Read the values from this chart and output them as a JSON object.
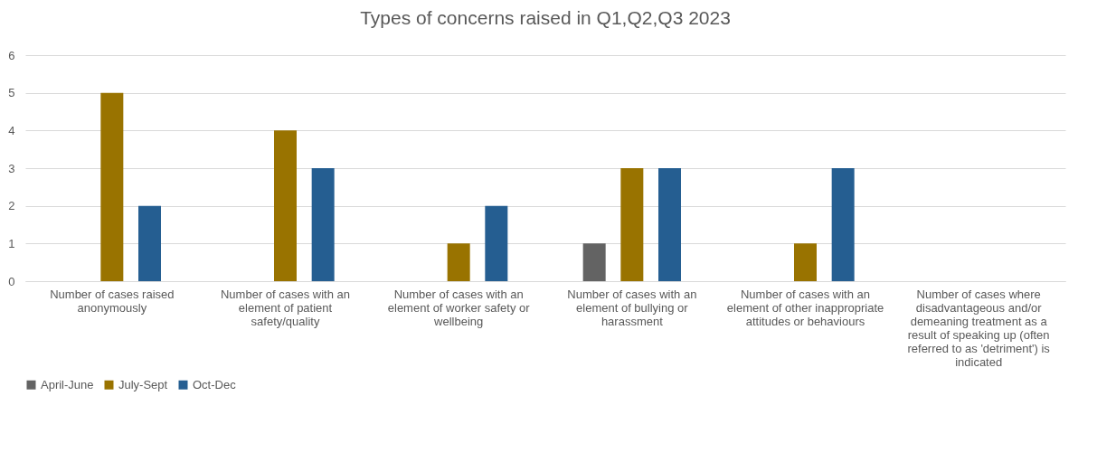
{
  "chart_data": {
    "type": "bar",
    "title": "Types of concerns raised in Q1,Q2,Q3 2023",
    "categories": [
      "Number of cases raised anonymously",
      "Number of cases with an element of patient safety/quality",
      "Number of cases with an element of worker safety or wellbeing",
      "Number of cases with an element of bullying or harassment",
      "Number of cases with an element of other inappropriate attitudes or behaviours",
      "Number of cases where disadvantageous and/or demeaning treatment as a result of speaking up (often referred to as 'detriment') is indicated"
    ],
    "series": [
      {
        "name": "April-June",
        "color": "#636363",
        "values": [
          0,
          0,
          0,
          1,
          0,
          0
        ]
      },
      {
        "name": "July-Sept",
        "color": "#997300",
        "values": [
          5,
          4,
          1,
          3,
          1,
          0
        ]
      },
      {
        "name": "Oct-Dec",
        "color": "#255e91",
        "values": [
          2,
          3,
          2,
          3,
          3,
          0
        ]
      }
    ],
    "ylim": [
      0,
      6
    ],
    "yticks": [
      0,
      1,
      2,
      3,
      4,
      5,
      6
    ],
    "grid": "y",
    "legend": "bottom"
  }
}
